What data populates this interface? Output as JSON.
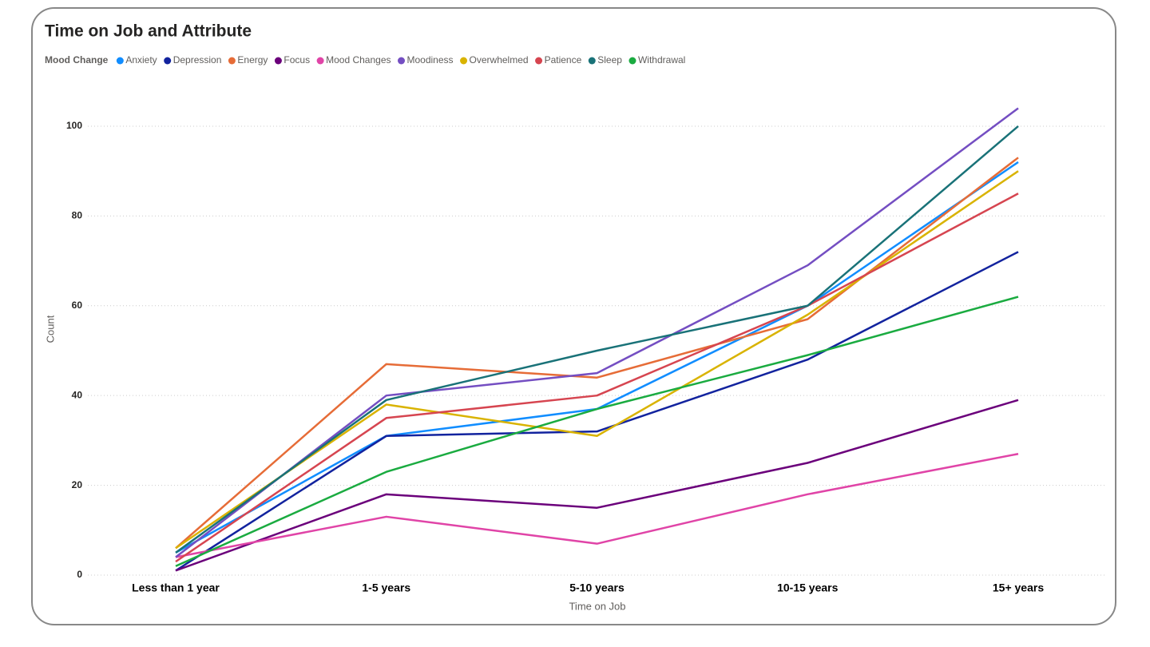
{
  "chart_data": {
    "type": "line",
    "title": "Time on Job and Attribute",
    "legend_title": "Mood Change",
    "x_label": "Time on Job",
    "y_label": "Count",
    "categories": [
      "Less than 1 year",
      "1-5 years",
      "5-10 years",
      "10-15 years",
      "15+ years"
    ],
    "ylim": [
      0,
      108
    ],
    "yticks": [
      0,
      20,
      40,
      60,
      80,
      100
    ],
    "grid": true,
    "series": [
      {
        "name": "Anxiety",
        "color": "#118DFF",
        "values": [
          5,
          31,
          37,
          60,
          92
        ]
      },
      {
        "name": "Depression",
        "color": "#12239E",
        "values": [
          1,
          31,
          32,
          48,
          72
        ]
      },
      {
        "name": "Energy",
        "color": "#E66C37",
        "values": [
          6,
          47,
          44,
          57,
          93
        ]
      },
      {
        "name": "Focus",
        "color": "#6B007B",
        "values": [
          1,
          18,
          15,
          25,
          39
        ]
      },
      {
        "name": "Mood Changes",
        "color": "#E044A7",
        "values": [
          4,
          13,
          7,
          18,
          27
        ]
      },
      {
        "name": "Moodiness",
        "color": "#744EC2",
        "values": [
          4,
          40,
          45,
          69,
          104
        ]
      },
      {
        "name": "Overwhelmed",
        "color": "#D9B300",
        "values": [
          6,
          38,
          31,
          58,
          90
        ]
      },
      {
        "name": "Patience",
        "color": "#D64550",
        "values": [
          3,
          35,
          40,
          60,
          85
        ]
      },
      {
        "name": "Sleep",
        "color": "#197278",
        "values": [
          5,
          39,
          50,
          60,
          100
        ]
      },
      {
        "name": "Withdrawal",
        "color": "#1AAB40",
        "values": [
          2,
          23,
          37,
          49,
          62
        ]
      }
    ]
  }
}
